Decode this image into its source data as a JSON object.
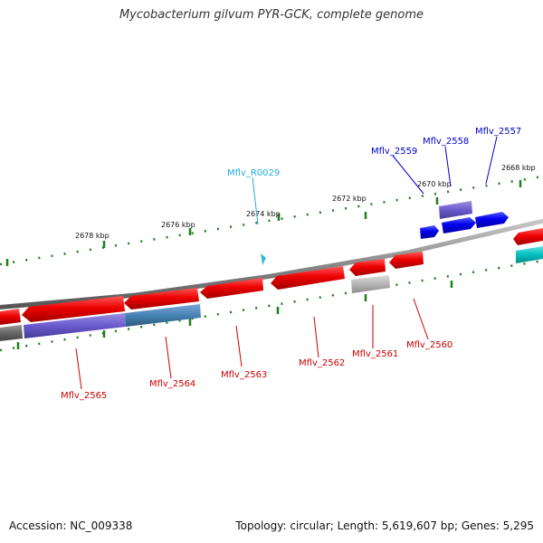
{
  "title": "Mycobacterium gilvum PYR-GCK, complete genome",
  "footer": {
    "accession": "Accession: NC_009338",
    "summary": "Topology: circular; Length: 5,619,607 bp; Genes: 5,295"
  },
  "colors": {
    "backbone": "#8a8a8a",
    "tick": "#1e7f1e",
    "forward_gene": "#0000ee",
    "reverse_gene": "#ee0000",
    "rna": "#33bbdd",
    "label_forward": "#0000cc",
    "label_reverse": "#cc0000",
    "label_rna": "#22aadd"
  },
  "ruler": {
    "ticks_kbp": [
      "2678 kbp",
      "2676 kbp",
      "2674 kbp",
      "2672 kbp",
      "2670 kbp",
      "2668 kbp"
    ]
  },
  "features": [
    {
      "id": "Mflv_2557",
      "strand": "+",
      "color": "blue"
    },
    {
      "id": "Mflv_2558",
      "strand": "+",
      "color": "slateblue"
    },
    {
      "id": "Mflv_2559",
      "strand": "+",
      "color": "blue"
    },
    {
      "id": "Mflv_R0029",
      "strand": "+",
      "color": "cyan"
    },
    {
      "id": "Mflv_2560",
      "strand": "-",
      "color": "red"
    },
    {
      "id": "Mflv_2561",
      "strand": "-",
      "color": "red"
    },
    {
      "id": "Mflv_2562",
      "strand": "-",
      "color": "red"
    },
    {
      "id": "Mflv_2563",
      "strand": "-",
      "color": "red"
    },
    {
      "id": "Mflv_2564",
      "strand": "-",
      "color": "red"
    },
    {
      "id": "Mflv_2565",
      "strand": "-",
      "color": "red"
    }
  ]
}
